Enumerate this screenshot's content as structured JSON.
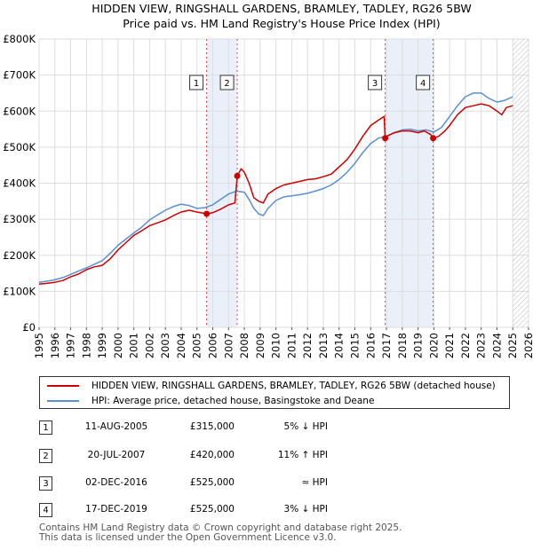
{
  "chart_data": {
    "type": "line",
    "title": "HIDDEN VIEW, RINGSHALL GARDENS, BRAMLEY, TADLEY, RG26 5BW",
    "subtitle": "Price paid vs. HM Land Registry's House Price Index (HPI)",
    "xlabel": "",
    "ylabel": "",
    "xlim": [
      1995,
      2026
    ],
    "ylim": [
      0,
      800000
    ],
    "y_ticks": [
      {
        "value": 0,
        "label": "£0"
      },
      {
        "value": 100000,
        "label": "£100K"
      },
      {
        "value": 200000,
        "label": "£200K"
      },
      {
        "value": 300000,
        "label": "£300K"
      },
      {
        "value": 400000,
        "label": "£400K"
      },
      {
        "value": 500000,
        "label": "£500K"
      },
      {
        "value": 600000,
        "label": "£600K"
      },
      {
        "value": 700000,
        "label": "£700K"
      },
      {
        "value": 800000,
        "label": "£800K"
      }
    ],
    "x_ticks": [
      "1995",
      "1996",
      "1997",
      "1998",
      "1999",
      "2000",
      "2001",
      "2002",
      "2003",
      "2004",
      "2005",
      "2006",
      "2007",
      "2008",
      "2009",
      "2010",
      "2011",
      "2012",
      "2013",
      "2014",
      "2015",
      "2016",
      "2017",
      "2018",
      "2019",
      "2020",
      "2021",
      "2022",
      "2023",
      "2024",
      "2025",
      "2026"
    ],
    "grid": true,
    "future_hatch_from": 2025.0,
    "series": [
      {
        "name": "HIDDEN VIEW, RINGSHALL GARDENS, BRAMLEY, TADLEY, RG26 5BW (detached house)",
        "color": "#cc0000",
        "x": [
          1995.0,
          1995.5,
          1996.0,
          1996.5,
          1997.0,
          1997.5,
          1998.0,
          1998.5,
          1999.0,
          1999.5,
          2000.0,
          2000.5,
          2001.0,
          2001.5,
          2002.0,
          2002.5,
          2003.0,
          2003.5,
          2004.0,
          2004.5,
          2005.0,
          2005.61,
          2006.0,
          2006.5,
          2007.0,
          2007.4,
          2007.55,
          2007.8,
          2008.0,
          2008.3,
          2008.6,
          2008.9,
          2009.2,
          2009.5,
          2010.0,
          2010.5,
          2011.0,
          2011.5,
          2012.0,
          2012.5,
          2013.0,
          2013.5,
          2014.0,
          2014.5,
          2015.0,
          2015.5,
          2016.0,
          2016.5,
          2016.85,
          2016.92,
          2017.0,
          2017.5,
          2018.0,
          2018.5,
          2019.0,
          2019.4,
          2019.8,
          2019.96,
          2020.3,
          2020.7,
          2021.0,
          2021.5,
          2022.0,
          2022.5,
          2023.0,
          2023.5,
          2024.0,
          2024.3,
          2024.6,
          2025.0
        ],
        "values": [
          120000,
          122000,
          125000,
          130000,
          140000,
          148000,
          160000,
          168000,
          172000,
          190000,
          215000,
          235000,
          255000,
          268000,
          282000,
          290000,
          298000,
          310000,
          320000,
          325000,
          320000,
          315000,
          318000,
          328000,
          340000,
          345000,
          420000,
          440000,
          430000,
          400000,
          360000,
          350000,
          345000,
          370000,
          385000,
          395000,
          400000,
          405000,
          410000,
          412000,
          418000,
          425000,
          445000,
          465000,
          495000,
          530000,
          560000,
          575000,
          585000,
          525000,
          530000,
          540000,
          545000,
          545000,
          540000,
          545000,
          535000,
          525000,
          530000,
          545000,
          560000,
          590000,
          610000,
          615000,
          620000,
          615000,
          600000,
          590000,
          610000,
          615000
        ]
      },
      {
        "name": "HPI: Average price, detached house, Basingstoke and Deane",
        "color": "#5b8fd0",
        "x": [
          1995.0,
          1995.5,
          1996.0,
          1996.5,
          1997.0,
          1997.5,
          1998.0,
          1998.5,
          1999.0,
          1999.5,
          2000.0,
          2000.5,
          2001.0,
          2001.5,
          2002.0,
          2002.5,
          2003.0,
          2003.5,
          2004.0,
          2004.5,
          2005.0,
          2005.5,
          2006.0,
          2006.5,
          2007.0,
          2007.5,
          2008.0,
          2008.3,
          2008.6,
          2008.9,
          2009.2,
          2009.5,
          2010.0,
          2010.5,
          2011.0,
          2011.5,
          2012.0,
          2012.5,
          2013.0,
          2013.5,
          2014.0,
          2014.5,
          2015.0,
          2015.5,
          2016.0,
          2016.5,
          2017.0,
          2017.5,
          2018.0,
          2018.5,
          2019.0,
          2019.5,
          2020.0,
          2020.5,
          2021.0,
          2021.5,
          2022.0,
          2022.5,
          2023.0,
          2023.5,
          2024.0,
          2024.5,
          2025.0
        ],
        "values": [
          125000,
          128000,
          132000,
          138000,
          147000,
          156000,
          165000,
          175000,
          185000,
          205000,
          228000,
          245000,
          262000,
          278000,
          298000,
          312000,
          325000,
          335000,
          342000,
          338000,
          330000,
          332000,
          340000,
          355000,
          370000,
          378000,
          375000,
          355000,
          330000,
          315000,
          310000,
          330000,
          352000,
          362000,
          365000,
          368000,
          372000,
          378000,
          385000,
          395000,
          410000,
          430000,
          455000,
          485000,
          510000,
          525000,
          530000,
          540000,
          548000,
          550000,
          545000,
          548000,
          542000,
          555000,
          585000,
          615000,
          640000,
          650000,
          650000,
          635000,
          625000,
          630000,
          640000
        ]
      }
    ],
    "sales": [
      {
        "id": "1",
        "x": 2005.61,
        "price": 315000
      },
      {
        "id": "2",
        "x": 2007.55,
        "price": 420000
      },
      {
        "id": "3",
        "x": 2016.92,
        "price": 525000
      },
      {
        "id": "4",
        "x": 2019.96,
        "price": 525000
      }
    ],
    "shaded_ranges": [
      [
        2005.61,
        2007.55
      ],
      [
        2016.92,
        2019.96
      ]
    ]
  },
  "legend": {
    "property_label": "HIDDEN VIEW, RINGSHALL GARDENS, BRAMLEY, TADLEY, RG26 5BW (detached house)",
    "hpi_label": "HPI: Average price, detached house, Basingstoke and Deane",
    "property_color": "#cc0000",
    "hpi_color": "#5b8fd0"
  },
  "sales_table": [
    {
      "num": "1",
      "date": "11-AUG-2005",
      "price": "£315,000",
      "hpi": "5% ↓ HPI"
    },
    {
      "num": "2",
      "date": "20-JUL-2007",
      "price": "£420,000",
      "hpi": "11% ↑ HPI"
    },
    {
      "num": "3",
      "date": "02-DEC-2016",
      "price": "£525,000",
      "hpi": "≈ HPI"
    },
    {
      "num": "4",
      "date": "17-DEC-2019",
      "price": "£525,000",
      "hpi": "3% ↓ HPI"
    }
  ],
  "footer": {
    "line1": "Contains HM Land Registry data © Crown copyright and database right 2025.",
    "line2": "This data is licensed under the Open Government Licence v3.0."
  }
}
